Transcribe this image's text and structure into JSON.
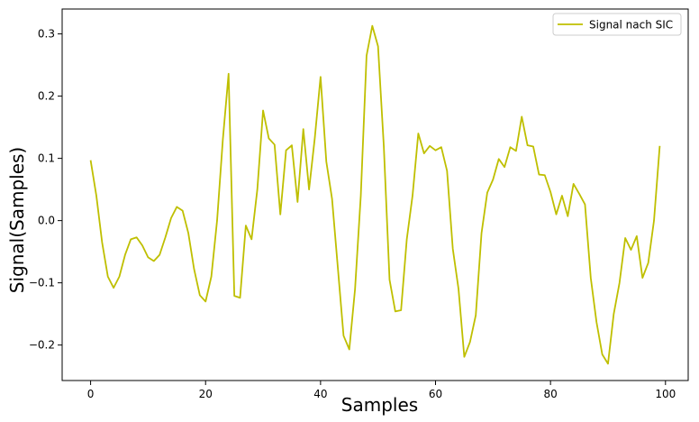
{
  "chart_data": {
    "type": "line",
    "title": "",
    "xlabel": "Samples",
    "ylabel": "Signal(Samples)",
    "xlim": [
      -4.95,
      103.95
    ],
    "ylim": [
      -0.257,
      0.34
    ],
    "xticks": [
      0,
      20,
      40,
      60,
      80,
      100
    ],
    "yticks": [
      -0.2,
      -0.1,
      0.0,
      0.1,
      0.2,
      0.3
    ],
    "ytick_labels": [
      "−0.2",
      "−0.1",
      "0.0",
      "0.1",
      "0.2",
      "0.3"
    ],
    "grid": false,
    "legend_position": "top-right",
    "color": "#bfbf00",
    "series": [
      {
        "name": "Signal nach SIC",
        "x": [
          0,
          1,
          2,
          3,
          4,
          5,
          6,
          7,
          8,
          9,
          10,
          11,
          12,
          13,
          14,
          15,
          16,
          17,
          18,
          19,
          20,
          21,
          22,
          23,
          24,
          25,
          26,
          27,
          28,
          29,
          30,
          31,
          32,
          33,
          34,
          35,
          36,
          37,
          38,
          39,
          40,
          41,
          42,
          43,
          44,
          45,
          46,
          47,
          48,
          49,
          50,
          51,
          52,
          53,
          54,
          55,
          56,
          57,
          58,
          59,
          60,
          61,
          62,
          63,
          64,
          65,
          66,
          67,
          68,
          69,
          70,
          71,
          72,
          73,
          74,
          75,
          76,
          77,
          78,
          79,
          80,
          81,
          82,
          83,
          84,
          85,
          86,
          87,
          88,
          89,
          90,
          91,
          92,
          93,
          94,
          95,
          96,
          97,
          98,
          99
        ],
        "values": [
          0.097,
          0.04,
          -0.035,
          -0.09,
          -0.108,
          -0.09,
          -0.055,
          -0.03,
          -0.027,
          -0.04,
          -0.059,
          -0.065,
          -0.055,
          -0.027,
          0.004,
          0.022,
          0.016,
          -0.02,
          -0.078,
          -0.12,
          -0.13,
          -0.09,
          0.0,
          0.13,
          0.236,
          -0.121,
          -0.124,
          -0.008,
          -0.03,
          0.05,
          0.177,
          0.132,
          0.122,
          0.01,
          0.113,
          0.121,
          0.03,
          0.147,
          0.05,
          0.133,
          0.231,
          0.095,
          0.035,
          -0.075,
          -0.185,
          -0.207,
          -0.11,
          0.04,
          0.265,
          0.313,
          0.28,
          0.12,
          -0.095,
          -0.146,
          -0.144,
          -0.03,
          0.04,
          0.14,
          0.108,
          0.12,
          0.113,
          0.118,
          0.08,
          -0.045,
          -0.11,
          -0.219,
          -0.195,
          -0.152,
          -0.02,
          0.045,
          0.066,
          0.099,
          0.086,
          0.118,
          0.112,
          0.167,
          0.121,
          0.119,
          0.074,
          0.073,
          0.046,
          0.01,
          0.04,
          0.007,
          0.059,
          0.043,
          0.026,
          -0.092,
          -0.163,
          -0.215,
          -0.23,
          -0.15,
          -0.1,
          -0.028,
          -0.047,
          -0.025,
          -0.092,
          -0.068,
          0.0,
          0.12
        ]
      }
    ]
  }
}
